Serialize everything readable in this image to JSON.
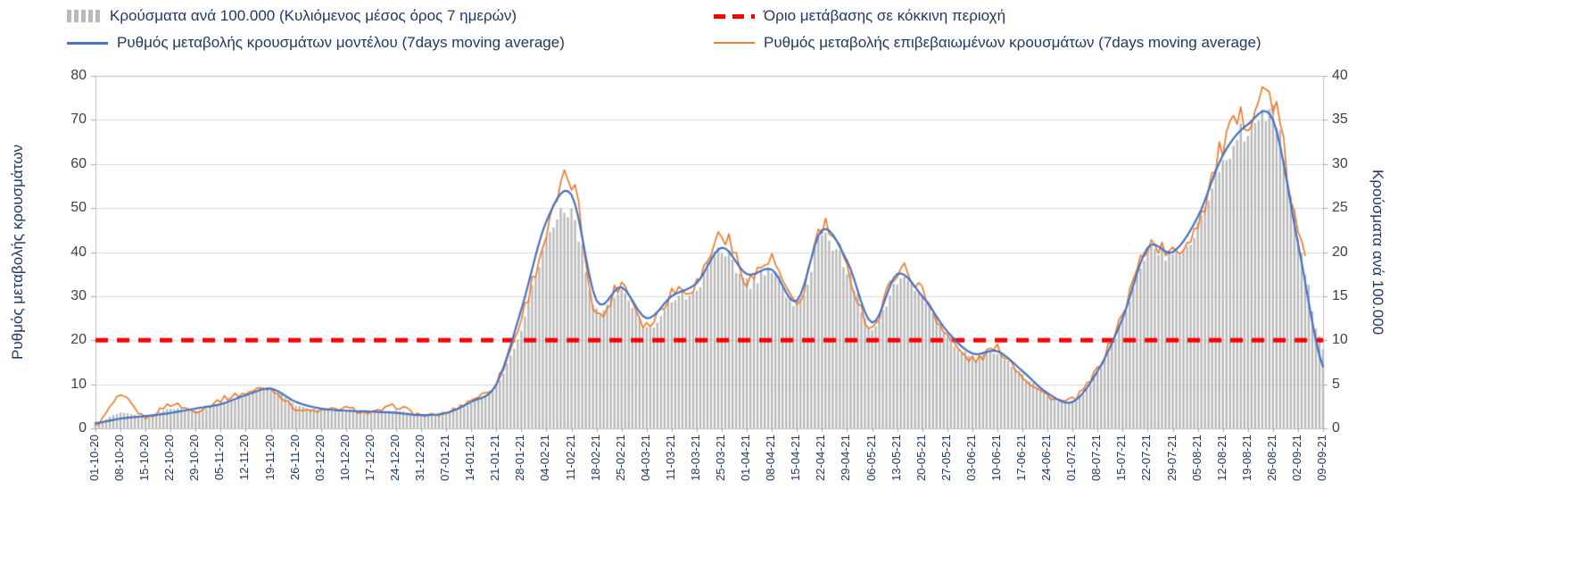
{
  "colors": {
    "bar": "#b9b9b9",
    "model_line": "#4472c4",
    "confirmed_line": "#ed7d31",
    "threshold_line": "#ff0000",
    "gridline": "#d9d9d9",
    "plot_border": "#bfbfbf",
    "tick_mark": "#a6a6a6",
    "text": "#203864"
  },
  "legend": {
    "items": [
      {
        "key": "bars",
        "label": "Κρούσματα ανά 100.000 (Κυλιόμενος μέσος όρος 7 ημερών)"
      },
      {
        "key": "threshold",
        "label": "Όριο μετάβασης σε κόκκινη περιοχή"
      },
      {
        "key": "model",
        "label": "Ρυθμός μεταβολής κρουσμάτων μοντέλου (7days moving average)"
      },
      {
        "key": "confirmed",
        "label": "Ρυθμός μεταβολής επιβεβαιωμένων κρουσμάτων (7days moving average)"
      }
    ]
  },
  "axes": {
    "left_title": "Ρυθμός μεταβολής κρουσμάτων",
    "right_title": "Κρούσματα ανά 100.000",
    "left_ticks": [
      0,
      10,
      20,
      30,
      40,
      50,
      60,
      70,
      80
    ],
    "right_ticks": [
      0,
      5,
      10,
      15,
      20,
      25,
      30,
      35,
      40
    ]
  },
  "chart_data": {
    "type": "combo bar+line, dual axis, daily series with weekly x labels",
    "left_axis_range": [
      0,
      80
    ],
    "right_axis_range": [
      0,
      40
    ],
    "grid": "horizontal only",
    "legend_position": "top",
    "x_weekly_labels": [
      "01-10-20",
      "08-10-20",
      "15-10-20",
      "22-10-20",
      "29-10-20",
      "05-11-20",
      "12-11-20",
      "19-11-20",
      "26-11-20",
      "03-12-20",
      "10-12-20",
      "17-12-20",
      "24-12-20",
      "31-12-20",
      "07-01-21",
      "14-01-21",
      "21-01-21",
      "28-01-21",
      "04-02-21",
      "11-02-21",
      "18-02-21",
      "25-02-21",
      "04-03-21",
      "11-03-21",
      "18-03-21",
      "25-03-21",
      "01-04-21",
      "08-04-21",
      "15-04-21",
      "22-04-21",
      "29-04-21",
      "06-05-21",
      "13-05-21",
      "20-05-21",
      "27-05-21",
      "03-06-21",
      "10-06-21",
      "17-06-21",
      "24-06-21",
      "01-07-21",
      "08-07-21",
      "15-07-21",
      "22-07-21",
      "29-07-21",
      "05-08-21",
      "12-08-21",
      "19-08-21",
      "26-08-21",
      "02-09-21",
      "09-09-21"
    ],
    "series": [
      {
        "key": "bars",
        "name": "Κρούσματα ανά 100.000 (Κυλιόμενος μέσος όρος 7 ημερών)",
        "type": "bar",
        "axis": "right",
        "color": "#b9b9b9",
        "weekly_values": [
          0.5,
          1.8,
          1.3,
          2.2,
          2,
          2.8,
          3.6,
          4.4,
          2.6,
          2.1,
          2,
          1.8,
          2,
          1.5,
          1.7,
          2.8,
          4.9,
          11.5,
          21.5,
          24.5,
          13.5,
          15.5,
          11.5,
          14.5,
          16,
          20.5,
          16.5,
          18,
          14,
          21.5,
          18,
          11.5,
          16.5,
          15,
          10.5,
          8,
          8.5,
          6,
          3.8,
          3,
          6.2,
          12.5,
          20,
          19.5,
          23,
          30.5,
          34,
          35.5,
          22,
          9
        ]
      },
      {
        "key": "model",
        "name": "Ρυθμός μεταβολής κρουσμάτων μοντέλου (7days moving average)",
        "type": "line",
        "axis": "left",
        "color": "#4472c4",
        "width": 2.2,
        "jitter": 0,
        "end_trim_days": 0,
        "weekly_values": [
          1.2,
          2.2,
          2.8,
          3.5,
          4.5,
          5.5,
          7.5,
          9,
          6,
          4.5,
          4,
          3.8,
          3.5,
          3,
          3.5,
          6,
          10,
          27,
          47,
          53,
          29,
          32,
          25,
          30,
          33,
          41,
          35,
          36,
          29,
          45,
          38,
          24,
          35,
          30,
          22,
          17,
          17.5,
          13,
          8,
          6,
          13,
          25,
          41,
          40,
          48,
          62,
          69,
          70,
          42,
          14
        ]
      },
      {
        "key": "confirmed",
        "name": "Ρυθμός μεταβολής επιβεβαιωμένων κρουσμάτων (7days moving average)",
        "type": "line",
        "axis": "left",
        "color": "#ed7d31",
        "width": 1.7,
        "jitter": 1,
        "end_trim_days": 5,
        "weekly_values": [
          0.5,
          7,
          2.5,
          5.5,
          4,
          6.5,
          8,
          9,
          4.5,
          4,
          4.5,
          3.5,
          5,
          3,
          3.5,
          6.5,
          10.5,
          25,
          44,
          56,
          26,
          33,
          23.5,
          31,
          33,
          44,
          34,
          38,
          28,
          45.5,
          36,
          23,
          36,
          31,
          21,
          15.5,
          18,
          12,
          7.5,
          6.5,
          13.5,
          26,
          41.5,
          39.5,
          47,
          64,
          71,
          74.5,
          44,
          30
        ]
      },
      {
        "key": "threshold",
        "name": "Όριο μετάβασης σε κόκκινη περιοχή",
        "type": "threshold",
        "axis": "left",
        "color": "#ff0000",
        "value": 20
      }
    ]
  }
}
